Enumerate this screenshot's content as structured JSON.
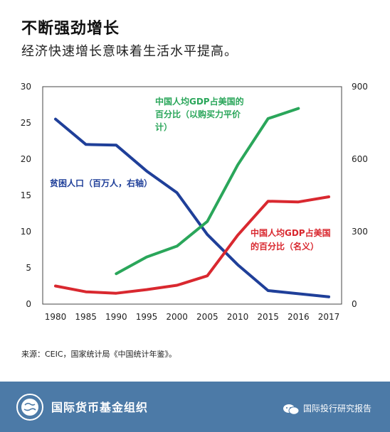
{
  "header": {
    "title": "不断强劲增长",
    "subtitle": "经济快速增长意味着生活水平提高。"
  },
  "chart_data": {
    "type": "line",
    "x": [
      "1980",
      "1985",
      "1990",
      "1995",
      "2000",
      "2005",
      "2010",
      "2015",
      "2016",
      "2017"
    ],
    "left_axis": {
      "ylim": [
        0,
        30
      ],
      "ticks": [
        "0",
        "5",
        "10",
        "15",
        "20",
        "25",
        "30"
      ]
    },
    "right_axis": {
      "ylim": [
        0,
        900
      ],
      "ticks": [
        "0",
        "300",
        "600",
        "900"
      ]
    },
    "series": [
      {
        "name": "贫困人口（百万人，右轴）",
        "axis": "right",
        "color": "#1f3f99",
        "values": [
          766,
          661,
          658,
          551,
          461,
          288,
          163,
          56,
          43,
          30
        ]
      },
      {
        "name": "中国人均GDP占美国的百分比（以购买力平价计）",
        "axis": "left",
        "color": "#2aa65a",
        "values": [
          null,
          null,
          4.2,
          6.5,
          8.0,
          11.4,
          19.2,
          25.6,
          27.0,
          null
        ]
      },
      {
        "name": "中国人均GDP占美国的百分比（名义）",
        "axis": "left",
        "color": "#d9282f",
        "values": [
          2.5,
          1.7,
          1.5,
          2.0,
          2.6,
          3.9,
          9.5,
          14.2,
          14.1,
          14.8
        ]
      }
    ],
    "annotations": {
      "poverty": [
        "贫困人口（百万人，右轴）"
      ],
      "gdp_ppp": [
        "中国人均GDP占美国的",
        "百分比（以购买力平价",
        "计）"
      ],
      "gdp_nominal": [
        "中国人均GDP占美国",
        "的百分比（名义）"
      ]
    }
  },
  "source": "来源：CEIC，国家统计局《中国统计年鉴》。",
  "footer": {
    "org_name": "国际货币基金组织",
    "account_name": "国际投行研究报告",
    "background": "#4c7aa7",
    "logo_icon": "imf-globe-icon",
    "wechat_icon": "wechat-icon"
  }
}
